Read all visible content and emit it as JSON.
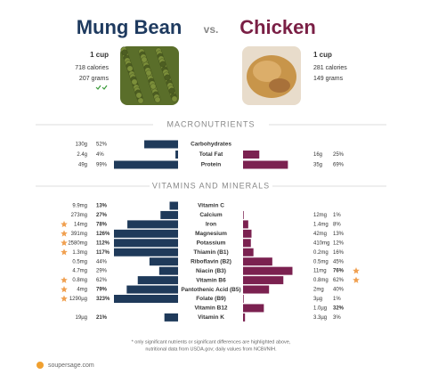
{
  "header": {
    "left": {
      "title": "Mung Bean",
      "serving": "1 cup",
      "calories": "718 calories",
      "grams": "207 grams"
    },
    "vs": "vs.",
    "right": {
      "title": "Chicken",
      "serving": "1 cup",
      "calories": "281 calories",
      "grams": "149 grams"
    }
  },
  "macros": {
    "title": "MACRONUTRIENTS",
    "rows": [
      {
        "label": "Carbohydrates",
        "left": {
          "amount": "130g",
          "pct": 52,
          "pct_label": "52%",
          "bold": false
        }
      },
      {
        "label": "Total Fat",
        "left": {
          "amount": "2.4g",
          "pct": 4,
          "pct_label": "4%",
          "bold": false
        },
        "right": {
          "amount": "16g",
          "pct": 25,
          "pct_label": "25%",
          "bold": false
        }
      },
      {
        "label": "Protein",
        "left": {
          "amount": "49g",
          "pct": 99,
          "pct_label": "99%",
          "bold": false
        },
        "right": {
          "amount": "35g",
          "pct": 69,
          "pct_label": "69%",
          "bold": false
        }
      }
    ]
  },
  "vitamins": {
    "title": "VITAMINS AND MINERALS",
    "rows": [
      {
        "label": "Vitamin C",
        "left": {
          "amount": "9.9mg",
          "pct": 13,
          "pct_label": "13%",
          "bold": true
        }
      },
      {
        "label": "Calcium",
        "left": {
          "amount": "273mg",
          "pct": 27,
          "pct_label": "27%",
          "bold": true
        },
        "right": {
          "amount": "12mg",
          "pct": 1,
          "pct_label": "1%",
          "bold": false
        }
      },
      {
        "label": "Iron",
        "left": {
          "amount": "14mg",
          "pct": 78,
          "pct_label": "78%",
          "bold": true,
          "star": true
        },
        "right": {
          "amount": "1.4mg",
          "pct": 8,
          "pct_label": "8%",
          "bold": false
        }
      },
      {
        "label": "Magnesium",
        "left": {
          "amount": "391mg",
          "pct": 126,
          "pct_label": "126%",
          "bold": true,
          "star": true
        },
        "right": {
          "amount": "42mg",
          "pct": 13,
          "pct_label": "13%",
          "bold": false
        }
      },
      {
        "label": "Potassium",
        "left": {
          "amount": "2580mg",
          "pct": 112,
          "pct_label": "112%",
          "bold": true,
          "star": true
        },
        "right": {
          "amount": "410mg",
          "pct": 12,
          "pct_label": "12%",
          "bold": false
        }
      },
      {
        "label": "Thiamin (B1)",
        "left": {
          "amount": "1.3mg",
          "pct": 117,
          "pct_label": "117%",
          "bold": true,
          "star": true
        },
        "right": {
          "amount": "0.2mg",
          "pct": 16,
          "pct_label": "16%",
          "bold": false
        }
      },
      {
        "label": "Riboflavin (B2)",
        "left": {
          "amount": "0.5mg",
          "pct": 44,
          "pct_label": "44%",
          "bold": false
        },
        "right": {
          "amount": "0.5mg",
          "pct": 45,
          "pct_label": "45%",
          "bold": false
        }
      },
      {
        "label": "Niacin (B3)",
        "left": {
          "amount": "4.7mg",
          "pct": 29,
          "pct_label": "29%",
          "bold": false
        },
        "right": {
          "amount": "11mg",
          "pct": 76,
          "pct_label": "76%",
          "bold": true,
          "star": true
        }
      },
      {
        "label": "Vitamin B6",
        "left": {
          "amount": "0.8mg",
          "pct": 62,
          "pct_label": "62%",
          "bold": false,
          "star": true
        },
        "right": {
          "amount": "0.8mg",
          "pct": 62,
          "pct_label": "62%",
          "bold": false,
          "star": true
        }
      },
      {
        "label": "Pantothenic Acid (B5)",
        "left": {
          "amount": "4mg",
          "pct": 79,
          "pct_label": "79%",
          "bold": true,
          "star": true
        },
        "right": {
          "amount": "2mg",
          "pct": 40,
          "pct_label": "40%",
          "bold": false
        }
      },
      {
        "label": "Folate (B9)",
        "left": {
          "amount": "1290µg",
          "pct": 323,
          "pct_label": "323%",
          "bold": true,
          "star": true
        },
        "right": {
          "amount": "3µg",
          "pct": 1,
          "pct_label": "1%",
          "bold": false
        }
      },
      {
        "label": "Vitamin B12",
        "right": {
          "amount": "1.0µg",
          "pct": 32,
          "pct_label": "32%",
          "bold": true
        }
      },
      {
        "label": "Vitamin K",
        "left": {
          "amount": "19µg",
          "pct": 21,
          "pct_label": "21%",
          "bold": true
        },
        "right": {
          "amount": "3.3µg",
          "pct": 3,
          "pct_label": "3%",
          "bold": false
        }
      }
    ]
  },
  "footer": {
    "note1": "* only significant nutrients or significant differences are highlighted above,",
    "note2": "nutritional data from USDA.gov; daily values from NCBI/NIH.",
    "site": "soupersage.com"
  }
}
